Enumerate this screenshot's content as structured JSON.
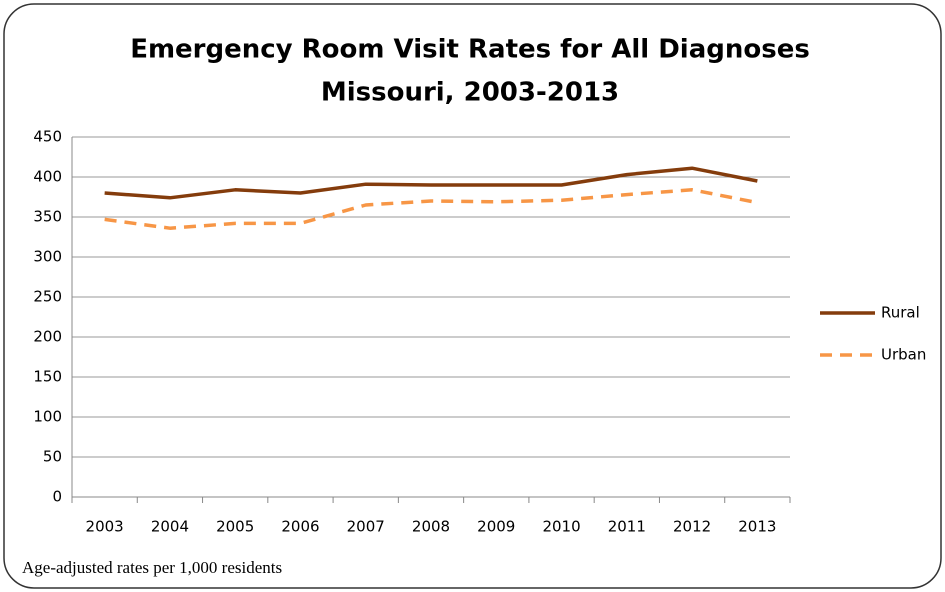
{
  "chart_data": {
    "type": "line",
    "title": "Emergency Room Visit Rates for All Diagnoses",
    "subtitle": "Missouri, 2003-2013",
    "annotation": "Age-adjusted rates per 1,000 residents",
    "categories": [
      "2003",
      "2004",
      "2005",
      "2006",
      "2007",
      "2008",
      "2009",
      "2010",
      "2011",
      "2012",
      "2013"
    ],
    "series": [
      {
        "name": "Rural",
        "color": "#843c0c",
        "dashed": false,
        "values": [
          380,
          374,
          384,
          380,
          391,
          390,
          390,
          390,
          403,
          411,
          395
        ]
      },
      {
        "name": "Urban",
        "color": "#f79646",
        "dashed": true,
        "values": [
          347,
          336,
          342,
          342,
          365,
          370,
          369,
          371,
          378,
          384,
          368
        ]
      }
    ],
    "ylim": [
      0,
      450
    ],
    "yticks": [
      0,
      50,
      100,
      150,
      200,
      250,
      300,
      350,
      400,
      450
    ],
    "grid": true,
    "legend": "right"
  }
}
